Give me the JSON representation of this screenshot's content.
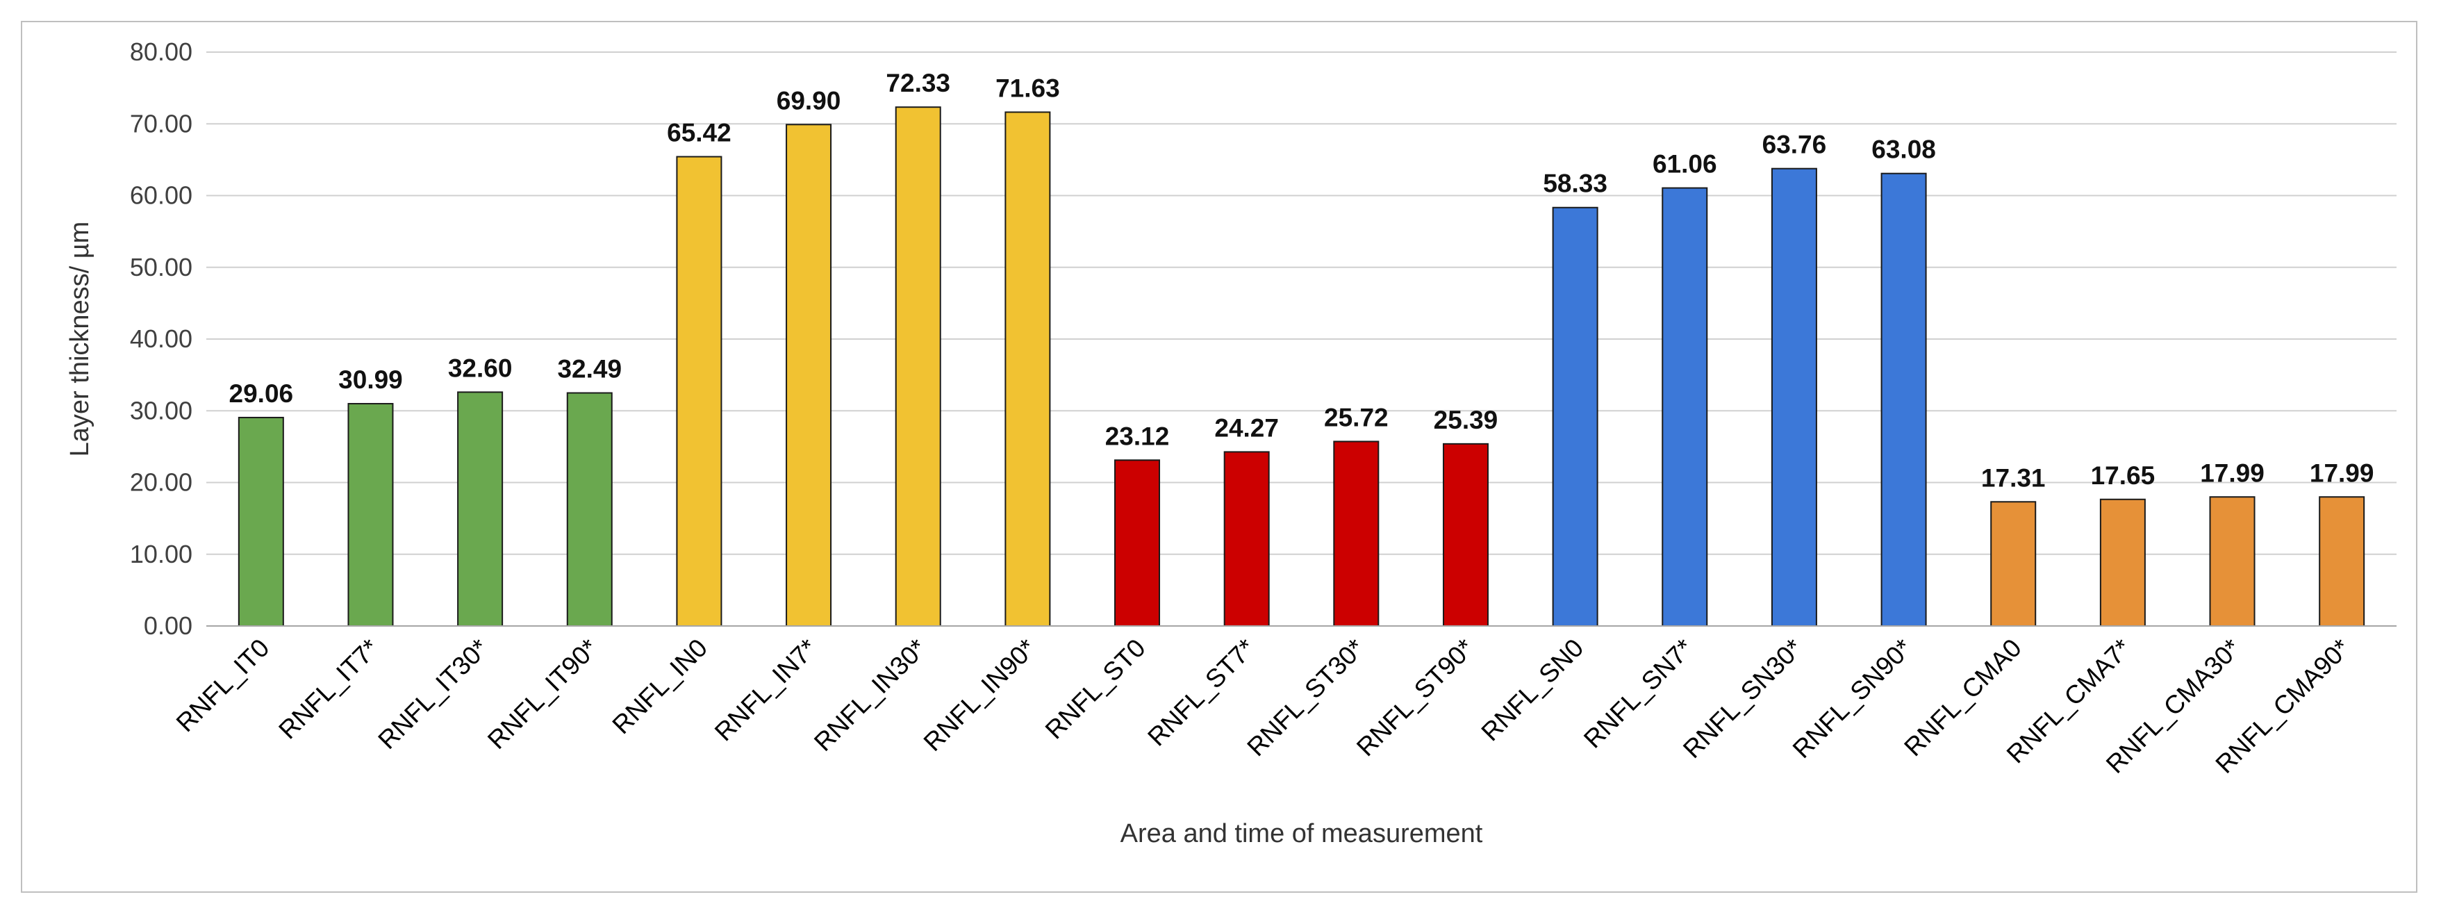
{
  "chart_data": {
    "type": "bar",
    "title": "",
    "xlabel": "Area and time of measurement",
    "ylabel": "Layer thickness/ µm",
    "ylim": [
      0,
      80
    ],
    "yticks": [
      "0.00",
      "10.00",
      "20.00",
      "30.00",
      "40.00",
      "50.00",
      "60.00",
      "70.00",
      "80.00"
    ],
    "grid": true,
    "legend": "none",
    "categories": [
      "RNFL_IT0",
      "RNFL_IT7*",
      "RNFL_IT30*",
      "RNFL_IT90*",
      "RNFL_IN0",
      "RNFL_IN7*",
      "RNFL_IN30*",
      "RNFL_IN90*",
      "RNFL_ST0",
      "RNFL_ST7*",
      "RNFL_ST30*",
      "RNFL_ST90*",
      "RNFL_SN0",
      "RNFL_SN7*",
      "RNFL_SN30*",
      "RNFL_SN90*",
      "RNFL_CMA0",
      "RNFL_CMA7*",
      "RNFL_CMA30*",
      "RNFL_CMA90*"
    ],
    "values": [
      29.06,
      30.99,
      32.6,
      32.49,
      65.42,
      69.9,
      72.33,
      71.63,
      23.12,
      24.27,
      25.72,
      25.39,
      58.33,
      61.06,
      63.76,
      63.08,
      17.31,
      17.65,
      17.99,
      17.99
    ],
    "value_labels": [
      "29.06",
      "30.99",
      "32.60",
      "32.49",
      "65.42",
      "69.90",
      "72.33",
      "71.63",
      "23.12",
      "24.27",
      "25.72",
      "25.39",
      "58.33",
      "61.06",
      "63.76",
      "63.08",
      "17.31",
      "17.65",
      "17.99",
      "17.99"
    ],
    "colors": [
      "#6aa84f",
      "#6aa84f",
      "#6aa84f",
      "#6aa84f",
      "#f1c232",
      "#f1c232",
      "#f1c232",
      "#f1c232",
      "#cc0000",
      "#cc0000",
      "#cc0000",
      "#cc0000",
      "#3c78d8",
      "#3c78d8",
      "#3c78d8",
      "#3c78d8",
      "#e69138",
      "#e69138",
      "#e69138",
      "#e69138"
    ],
    "grid_color": "#d0d0d0",
    "axis_color": "#a6a6a6",
    "bar_outline_color": "#1a1a1a"
  }
}
